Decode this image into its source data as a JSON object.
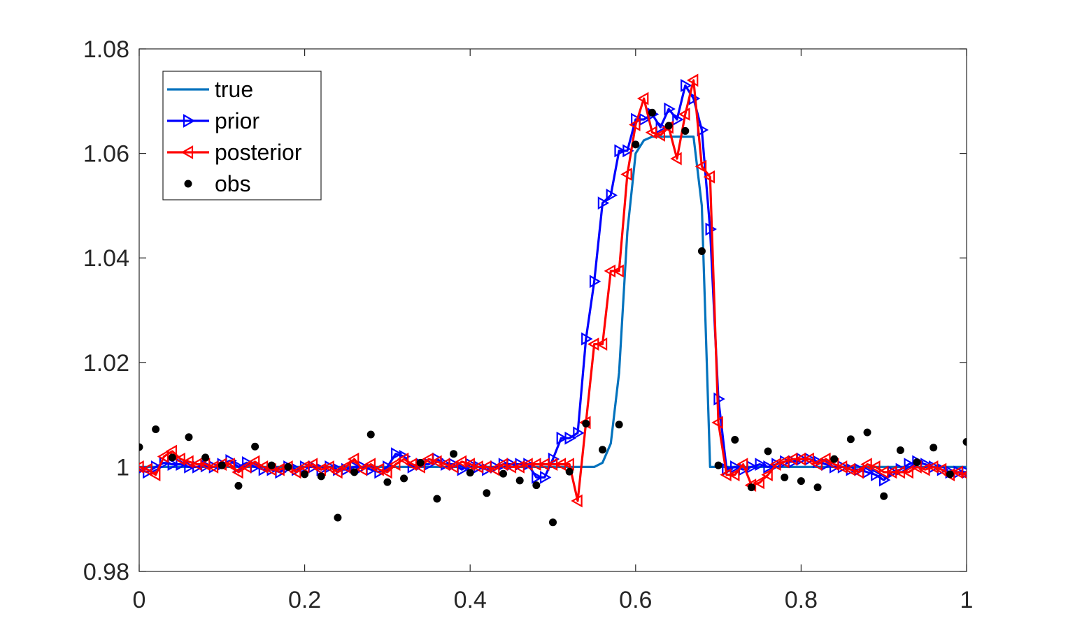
{
  "chart_data": {
    "type": "line",
    "title": "",
    "xlabel": "",
    "ylabel": "",
    "xlim": [
      0,
      1
    ],
    "ylim": [
      0.98,
      1.08
    ],
    "xticks": [
      0,
      0.2,
      0.4,
      0.6,
      0.8,
      1
    ],
    "xtick_labels": [
      "0",
      "0.2",
      "0.4",
      "0.6",
      "0.8",
      "1"
    ],
    "yticks": [
      0.98,
      1,
      1.02,
      1.04,
      1.06,
      1.08
    ],
    "ytick_labels": [
      "0.98",
      "1",
      "1.02",
      "1.04",
      "1.06",
      "1.08"
    ],
    "grid": false,
    "legend_position": "top-left",
    "series": [
      {
        "name": "true",
        "kind": "line",
        "color": "#0072BD",
        "x": [
          0,
          0.55,
          0.56,
          0.57,
          0.58,
          0.59,
          0.6,
          0.61,
          0.62,
          0.63,
          0.64,
          0.65,
          0.66,
          0.67,
          0.68,
          0.69,
          0.7,
          1
        ],
        "y": [
          1.0,
          1.0,
          1.0008,
          1.0045,
          1.018,
          1.045,
          1.06,
          1.0625,
          1.0632,
          1.0632,
          1.0632,
          1.0632,
          1.0632,
          1.0632,
          1.05,
          1.0,
          1.0,
          1.0
        ]
      },
      {
        "name": "prior",
        "kind": "line-marker",
        "marker": "triangle-right",
        "color": "#0000FF",
        "x": [
          0,
          0.01,
          0.02,
          0.03,
          0.04,
          0.05,
          0.06,
          0.07,
          0.08,
          0.09,
          0.1,
          0.11,
          0.12,
          0.13,
          0.14,
          0.15,
          0.16,
          0.17,
          0.18,
          0.19,
          0.2,
          0.21,
          0.22,
          0.23,
          0.24,
          0.25,
          0.26,
          0.27,
          0.28,
          0.29,
          0.3,
          0.31,
          0.32,
          0.33,
          0.34,
          0.35,
          0.36,
          0.37,
          0.38,
          0.39,
          0.4,
          0.41,
          0.42,
          0.43,
          0.44,
          0.45,
          0.46,
          0.47,
          0.48,
          0.49,
          0.5,
          0.51,
          0.52,
          0.53,
          0.54,
          0.55,
          0.56,
          0.57,
          0.58,
          0.59,
          0.6,
          0.61,
          0.62,
          0.63,
          0.64,
          0.65,
          0.66,
          0.67,
          0.68,
          0.69,
          0.7,
          0.71,
          0.72,
          0.73,
          0.74,
          0.75,
          0.76,
          0.77,
          0.78,
          0.79,
          0.8,
          0.81,
          0.82,
          0.83,
          0.84,
          0.85,
          0.86,
          0.87,
          0.88,
          0.89,
          0.9,
          0.91,
          0.92,
          0.93,
          0.94,
          0.95,
          0.96,
          0.97,
          0.98,
          0.99,
          1
        ],
        "y": [
          0.9995,
          0.999,
          1.0,
          1.0008,
          1.0005,
          1.0005,
          1.0,
          1.0,
          1.0002,
          1.0,
          1.0005,
          1.0012,
          1.0,
          1.0008,
          1.0,
          0.9995,
          0.9995,
          0.999,
          1.0,
          0.9995,
          1.0,
          1.0,
          0.9995,
          1.0,
          0.9995,
          0.9995,
          1.0,
          1.0,
          0.9995,
          0.999,
          1.0,
          1.0025,
          1.002,
          1.0,
          1.0005,
          1.0005,
          1.0015,
          1.0005,
          1.0005,
          0.9995,
          1.0005,
          1.0,
          0.9995,
          1.0,
          1.0005,
          1.0005,
          1.0005,
          1.0005,
          0.998,
          0.998,
          1.0015,
          1.0055,
          1.0055,
          1.0065,
          1.0245,
          1.0355,
          1.0505,
          1.052,
          1.0605,
          1.0605,
          1.0665,
          1.0665,
          1.0675,
          1.065,
          1.0685,
          1.0665,
          1.073,
          1.0705,
          1.0645,
          1.0455,
          1.013,
          0.9995,
          1.0,
          0.9995,
          1.0,
          1.0005,
          1.0,
          1.0005,
          1.001,
          1.001,
          1.0015,
          1.0015,
          1.001,
          1.0005,
          1.0,
          1.0,
          0.9995,
          0.9995,
          0.999,
          0.9985,
          0.9975,
          0.999,
          0.9995,
          1.0005,
          1.001,
          1.0005,
          1.0,
          0.9995,
          0.999,
          0.999,
          0.999
        ]
      },
      {
        "name": "posterior",
        "kind": "line-marker",
        "marker": "triangle-left",
        "color": "#FF0000",
        "x": [
          0,
          0.01,
          0.02,
          0.03,
          0.04,
          0.05,
          0.06,
          0.07,
          0.08,
          0.09,
          0.1,
          0.11,
          0.12,
          0.13,
          0.14,
          0.15,
          0.16,
          0.17,
          0.18,
          0.19,
          0.2,
          0.21,
          0.22,
          0.23,
          0.24,
          0.25,
          0.26,
          0.27,
          0.28,
          0.29,
          0.3,
          0.31,
          0.32,
          0.33,
          0.34,
          0.35,
          0.36,
          0.37,
          0.38,
          0.39,
          0.4,
          0.41,
          0.42,
          0.43,
          0.44,
          0.45,
          0.46,
          0.47,
          0.48,
          0.49,
          0.5,
          0.51,
          0.52,
          0.53,
          0.54,
          0.55,
          0.56,
          0.57,
          0.58,
          0.59,
          0.6,
          0.61,
          0.62,
          0.63,
          0.64,
          0.65,
          0.66,
          0.67,
          0.68,
          0.69,
          0.7,
          0.71,
          0.72,
          0.73,
          0.74,
          0.75,
          0.76,
          0.77,
          0.78,
          0.79,
          0.8,
          0.81,
          0.82,
          0.83,
          0.84,
          0.85,
          0.86,
          0.87,
          0.88,
          0.89,
          0.9,
          0.91,
          0.92,
          0.93,
          0.94,
          0.95,
          0.96,
          0.97,
          0.98,
          0.99,
          1
        ],
        "y": [
          1.0,
          0.9995,
          0.9985,
          1.002,
          1.003,
          1.0015,
          1.001,
          1.0005,
          1.0005,
          1.0,
          1.0005,
          1.0005,
          0.999,
          1.0,
          1.001,
          1.0,
          0.9995,
          0.9995,
          1.0,
          0.999,
          1.0,
          1.0005,
          0.9995,
          1.0,
          0.999,
          1.0,
          1.0015,
          0.9995,
          1.0005,
          0.9995,
          0.999,
          1.0005,
          1.0015,
          1.0005,
          1.0,
          1.0015,
          1.001,
          1.0005,
          1.0,
          1.001,
          1.0005,
          1.0,
          1.0,
          0.9995,
          1.0005,
          1.0,
          1.0,
          1.0005,
          1.0005,
          1.0005,
          1.0005,
          1.0005,
          1.0005,
          0.9935,
          1.0085,
          1.0235,
          1.0235,
          1.0375,
          1.0375,
          1.056,
          1.0655,
          1.0705,
          1.064,
          1.0635,
          1.065,
          1.059,
          1.0675,
          1.074,
          1.0575,
          1.0555,
          1.0085,
          0.9985,
          0.9985,
          1.0005,
          0.9965,
          0.997,
          0.9985,
          1.0005,
          1.001,
          1.0015,
          1.0015,
          1.0015,
          1.0005,
          1.0015,
          1.0005,
          1.0,
          0.9995,
          0.999,
          1.0005,
          1.0,
          0.999,
          0.999,
          0.999,
          0.999,
          1.0,
          0.9995,
          1.0,
          0.9995,
          0.9985,
          0.999,
          0.9985
        ]
      },
      {
        "name": "obs",
        "kind": "scatter",
        "marker": "dot",
        "color": "#000000",
        "x": [
          0,
          0.02,
          0.04,
          0.06,
          0.08,
          0.1,
          0.12,
          0.14,
          0.16,
          0.18,
          0.2,
          0.22,
          0.24,
          0.26,
          0.28,
          0.3,
          0.32,
          0.34,
          0.36,
          0.38,
          0.4,
          0.42,
          0.44,
          0.46,
          0.48,
          0.5,
          0.52,
          0.54,
          0.56,
          0.58,
          0.6,
          0.62,
          0.64,
          0.66,
          0.68,
          0.7,
          0.72,
          0.74,
          0.76,
          0.78,
          0.8,
          0.82,
          0.84,
          0.86,
          0.88,
          0.9,
          0.92,
          0.94,
          0.96,
          0.98,
          1
        ],
        "y": [
          1.0038,
          1.0072,
          1.0018,
          1.0057,
          1.0018,
          1.0003,
          0.9964,
          1.0039,
          1.0003,
          1.0,
          0.9986,
          0.9982,
          0.9903,
          0.999,
          1.0062,
          0.9971,
          0.9978,
          1.0008,
          0.9939,
          1.0025,
          0.9989,
          0.995,
          0.9987,
          0.9974,
          0.9965,
          0.9894,
          0.9991,
          1.0083,
          1.0033,
          1.0081,
          1.0617,
          1.0678,
          1.0653,
          1.0643,
          1.0413,
          1.0003,
          1.0052,
          0.9961,
          1.003,
          0.998,
          0.9973,
          0.9961,
          1.0015,
          1.0053,
          1.0066,
          0.9944,
          1.0032,
          1.0009,
          1.0037,
          0.9986,
          1.0048
        ]
      }
    ]
  }
}
